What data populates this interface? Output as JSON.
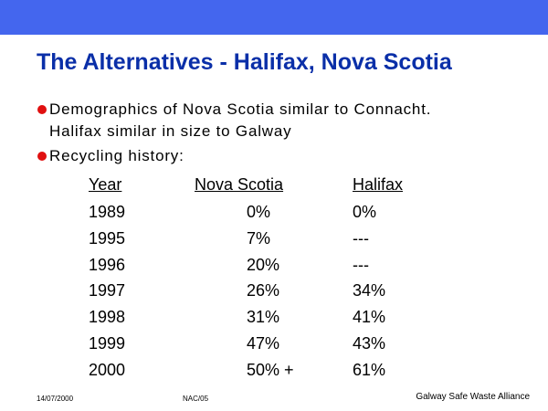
{
  "header": {
    "title": "The Alternatives - Halifax, Nova Scotia"
  },
  "bullets": [
    {
      "lines": [
        "Demographics of Nova Scotia similar to Connacht.",
        "Halifax similar in size to Galway"
      ]
    },
    {
      "lines": [
        "Recycling history:"
      ]
    }
  ],
  "table": {
    "columns": [
      "Year",
      "Nova Scotia",
      "Halifax"
    ],
    "rows": [
      [
        "1989",
        "0%",
        "0%"
      ],
      [
        "1995",
        "7%",
        "---"
      ],
      [
        "1996",
        "20%",
        "---"
      ],
      [
        "1997",
        "26%",
        "34%"
      ],
      [
        "1998",
        "31%",
        "41%"
      ],
      [
        "1999",
        "47%",
        "43%"
      ],
      [
        "2000",
        "50% +",
        "61%"
      ]
    ]
  },
  "footer": {
    "date": "14/07/2000",
    "code": "NAC/05",
    "organization": "Galway Safe Waste Alliance"
  }
}
